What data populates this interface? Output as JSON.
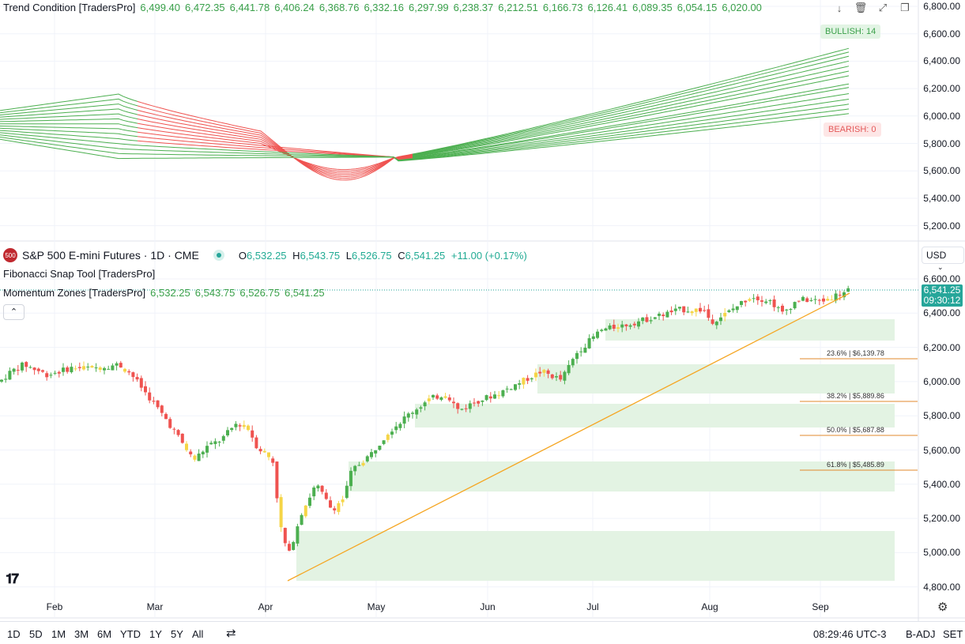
{
  "top_pane": {
    "title": "Trend Condition [TradersPro]",
    "values": [
      "6,499.40",
      "6,472.35",
      "6,441.78",
      "6,406.24",
      "6,368.76",
      "6,332.16",
      "6,297.99",
      "6,238.37",
      "6,212.51",
      "6,166.73",
      "6,126.41",
      "6,089.35",
      "6,054.15",
      "6,020.00"
    ],
    "bullish_label": "BULLISH: 14",
    "bearish_label": "BEARISH: 0",
    "y_ticks": [
      "6,800.00",
      "6,600.00",
      "6,400.00",
      "6,200.00",
      "6,000.00",
      "5,800.00",
      "5,600.00",
      "5,400.00",
      "5,200.00"
    ]
  },
  "main_pane": {
    "symbol_badge": "500",
    "symbol": "S&P 500 E-mini Futures · 1D · CME",
    "ohlc": {
      "o_label": "O",
      "o": "6,532.25",
      "h_label": "H",
      "h": "6,543.75",
      "l_label": "L",
      "l": "6,526.75",
      "c_label": "C",
      "c": "6,541.25",
      "change": "+11.00 (+0.17%)"
    },
    "indicator1": "Fibonacci Snap Tool [TradersPro]",
    "indicator2": "Momentum Zones [TradersPro]",
    "indicator2_values": [
      "6,532.25",
      "6,543.75",
      "6,526.75",
      "6,541.25"
    ],
    "currency": "USD",
    "price_tag": "6,541.25",
    "countdown": "09:30:12",
    "collapse_icon": "chevron-up-icon",
    "y_ticks": [
      "6,600.00",
      "6,400.00",
      "6,200.00",
      "6,000.00",
      "5,800.00",
      "5,600.00",
      "5,400.00",
      "5,200.00",
      "5,000.00",
      "4,800.00"
    ],
    "fib_levels": [
      "23.6% | $6,139.78",
      "38.2% | $5,889.86",
      "50.0% | $5,687.88",
      "61.8% | $5,485.89"
    ],
    "x_labels": [
      "Feb",
      "Mar",
      "Apr",
      "May",
      "Jun",
      "Jul",
      "Aug",
      "Sep"
    ],
    "colors": {
      "up": "#4caf50",
      "down": "#ef5350",
      "neutral": "#f5d547",
      "trend": "#f5a623",
      "zone": "#e3f3e3",
      "fib": "#e08a2e"
    }
  },
  "toolbar": {
    "timeframes": [
      "1D",
      "5D",
      "1M",
      "3M",
      "6M",
      "YTD",
      "1Y",
      "5Y",
      "All"
    ],
    "time": "08:29:46 UTC-3",
    "adj": "B-ADJ",
    "session": "SET"
  },
  "chart_data": [
    {
      "type": "line",
      "title": "Trend Condition [TradersPro]",
      "x": [
        "Feb",
        "Mar",
        "Apr",
        "May",
        "Jun",
        "Jul",
        "Aug",
        "Sep"
      ],
      "series_count": 14,
      "last_values": [
        6499.4,
        6472.35,
        6441.78,
        6406.24,
        6368.76,
        6332.16,
        6297.99,
        6238.37,
        6212.51,
        6166.73,
        6126.41,
        6089.35,
        6054.15,
        6020.0
      ],
      "ylim": [
        5150,
        6850
      ]
    },
    {
      "type": "candlestick",
      "title": "S&P 500 E-mini Futures · 1D · CME",
      "x": [
        "Feb",
        "Mar",
        "Apr",
        "May",
        "Jun",
        "Jul",
        "Aug",
        "Sep"
      ],
      "last": {
        "open": 6532.25,
        "high": 6543.75,
        "low": 6526.75,
        "close": 6541.25
      },
      "fib_levels": [
        6139.78,
        5889.86,
        5687.88,
        5485.89
      ],
      "ylim": [
        4760,
        6640
      ]
    }
  ]
}
